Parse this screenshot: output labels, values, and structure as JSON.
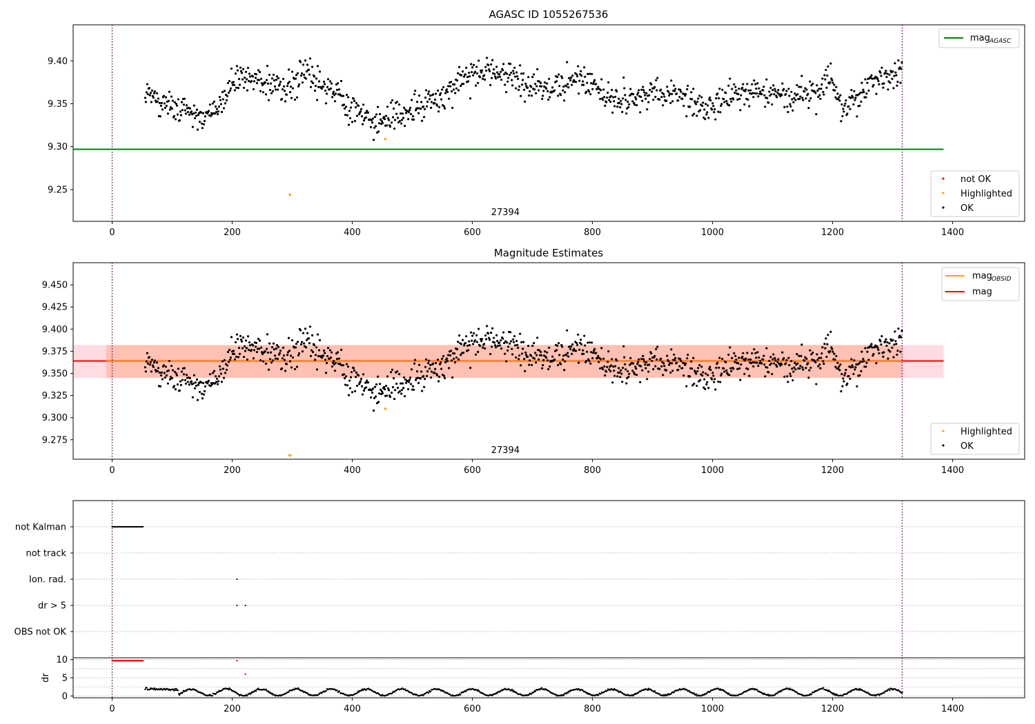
{
  "figure": {
    "title_top": "AGASC ID 1055267536",
    "title_mid": "Magnitude Estimates"
  },
  "colors": {
    "ok": "#000000",
    "not_ok": "#ff0000",
    "highlighted": "#ffa500",
    "agasc_line": "#008000",
    "mag_line": "#ff0000",
    "mag_obsid_line": "#ffa500",
    "band_orange": "#ffa07a",
    "band_pink": "#ffc0cb",
    "obs_boundary": "#800080",
    "grid": "#b0b0b0"
  },
  "chart_data": [
    {
      "id": "top",
      "type": "scatter",
      "title": "AGASC ID 1055267536",
      "xlim": [
        -65,
        1520
      ],
      "ylim": [
        9.213,
        9.442
      ],
      "xticks": [
        0,
        200,
        400,
        600,
        800,
        1000,
        1200,
        1400
      ],
      "yticks": [
        9.25,
        9.3,
        9.35,
        9.4
      ],
      "ytick_labels": [
        "9.25",
        "9.30",
        "9.35",
        "9.40"
      ],
      "obs_label": "27394",
      "obs_label_x": 655,
      "obs_boundaries": [
        0,
        1316
      ],
      "agasc_mag": 9.297,
      "agasc_line_x": [
        -65,
        1385
      ],
      "highlighted_points": [
        {
          "x": 296,
          "y": 9.244
        },
        {
          "x": 455,
          "y": 9.309
        }
      ],
      "legend_lines": [
        {
          "label": "mag",
          "subscript": "AGASC",
          "color": "#008000"
        }
      ],
      "legend_points": [
        {
          "label": "not OK",
          "color": "#ff0000"
        },
        {
          "label": "Highlighted",
          "color": "#ffa500"
        },
        {
          "label": "OK",
          "color": "#000000"
        }
      ]
    },
    {
      "id": "mid",
      "type": "scatter",
      "title": "Magnitude Estimates",
      "xlim": [
        -65,
        1520
      ],
      "ylim": [
        9.253,
        9.475
      ],
      "xticks": [
        0,
        200,
        400,
        600,
        800,
        1000,
        1200,
        1400
      ],
      "yticks": [
        9.275,
        9.3,
        9.325,
        9.35,
        9.375,
        9.4,
        9.425,
        9.45
      ],
      "ytick_labels": [
        "9.275",
        "9.300",
        "9.325",
        "9.350",
        "9.375",
        "9.400",
        "9.425",
        "9.450"
      ],
      "obs_label": "27394",
      "obs_label_x": 655,
      "obs_boundaries": [
        0,
        1316
      ],
      "mag": 9.364,
      "mag_line_x": [
        -65,
        1385
      ],
      "band_pink": {
        "x": [
          -65,
          1385
        ],
        "y": [
          9.345,
          9.382
        ]
      },
      "band_orange": {
        "x": [
          -10,
          1316
        ],
        "y": [
          9.345,
          9.382
        ]
      },
      "highlighted_points": [
        {
          "x": 455,
          "y": 9.31
        }
      ],
      "highlighted_offscale_marker": {
        "x": 296
      },
      "legend_lines": [
        {
          "label": "mag",
          "subscript": "OBSID",
          "color": "#ffa500"
        },
        {
          "label": "mag",
          "subscript": "",
          "color": "#ff0000"
        }
      ],
      "legend_points": [
        {
          "label": "Highlighted",
          "color": "#ffa500"
        },
        {
          "label": "OK",
          "color": "#000000"
        }
      ]
    },
    {
      "id": "flags",
      "type": "scatter",
      "xlim": [
        -65,
        1520
      ],
      "categories": [
        "not Kalman",
        "not track",
        "Ion. rad.",
        "dr > 5",
        "OBS not OK"
      ],
      "obs_boundaries": [
        0,
        1316
      ],
      "flag_points": [
        {
          "category": "not Kalman",
          "x_range": [
            0,
            52
          ]
        },
        {
          "category": "Ion. rad.",
          "x": [
            208
          ]
        },
        {
          "category": "dr > 5",
          "x": [
            208,
            222
          ]
        }
      ]
    },
    {
      "id": "dr",
      "type": "scatter",
      "ylabel": "dr",
      "xlim": [
        -65,
        1520
      ],
      "ylim": [
        -0.5,
        10.5
      ],
      "xticks": [
        0,
        200,
        400,
        600,
        800,
        1000,
        1200,
        1400
      ],
      "yticks": [
        0,
        5,
        10
      ],
      "ytick_labels": [
        "0",
        "5",
        "10"
      ],
      "obs_boundaries": [
        0,
        1316
      ],
      "red_points": [
        {
          "x_range": [
            0,
            52
          ],
          "y": 9.7
        },
        {
          "x": 208,
          "y": 9.7
        },
        {
          "x": 222,
          "y": 6.0
        }
      ]
    }
  ]
}
